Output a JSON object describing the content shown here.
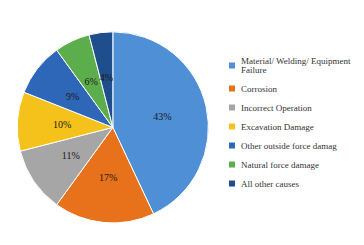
{
  "chart_data": {
    "type": "pie",
    "categories": [
      "Material/ Welding/ Equipment Failure",
      "Corrosion",
      "Incorrect Operation",
      "Excavation Damage",
      "Other outside force damag",
      "Natural force damage",
      "All other causes"
    ],
    "values": [
      43,
      17,
      11,
      10,
      9,
      6,
      4
    ],
    "value_labels": [
      "43%",
      "17%",
      "11%",
      "10%",
      "9%",
      "6%",
      "4%"
    ],
    "colors": [
      "#4f8fd6",
      "#e8711c",
      "#a6a6a6",
      "#f5c21b",
      "#2f67b8",
      "#5cae4c",
      "#1f4e8c"
    ],
    "legend": "right",
    "data_labels": true
  }
}
